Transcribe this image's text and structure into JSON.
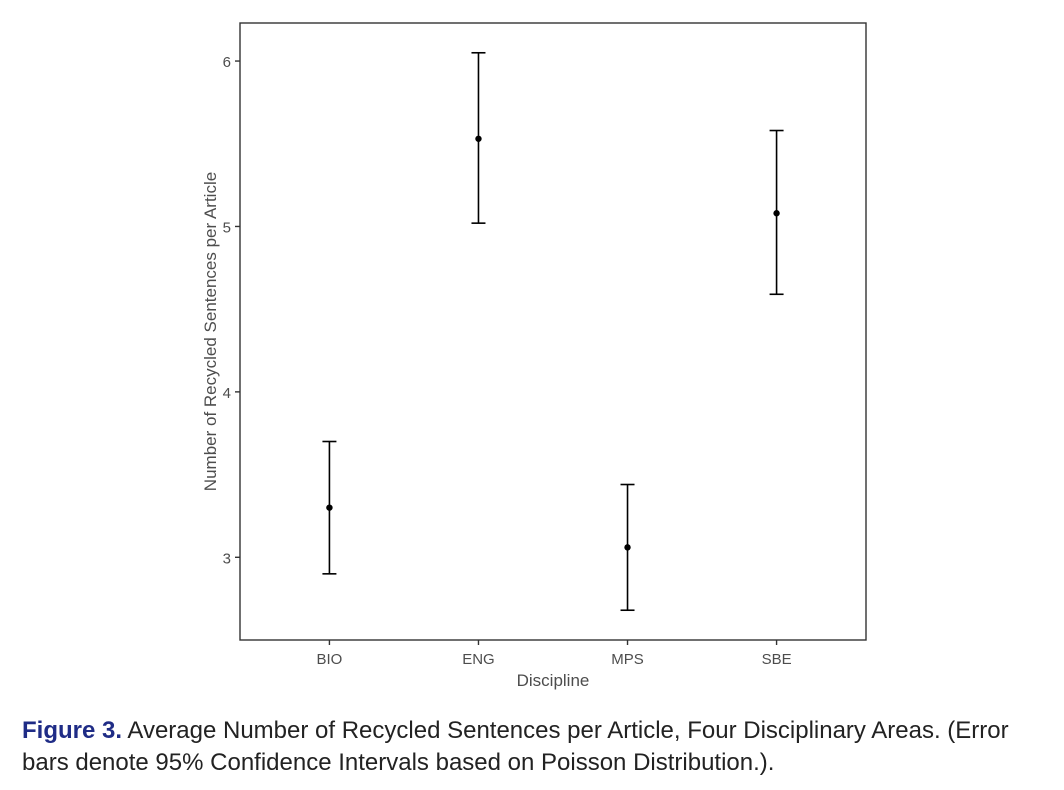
{
  "chart_data": {
    "type": "scatter",
    "subtype": "point-with-error-bars",
    "xlabel": "Discipline",
    "ylabel": "Number of Recycled Sentences per Article",
    "categories": [
      "BIO",
      "ENG",
      "MPS",
      "SBE"
    ],
    "points": [
      {
        "category": "BIO",
        "mean": 3.3,
        "lower": 2.9,
        "upper": 3.7
      },
      {
        "category": "ENG",
        "mean": 5.53,
        "lower": 5.02,
        "upper": 6.05
      },
      {
        "category": "MPS",
        "mean": 3.06,
        "lower": 2.68,
        "upper": 3.44
      },
      {
        "category": "SBE",
        "mean": 5.08,
        "lower": 4.59,
        "upper": 5.58
      }
    ],
    "yticks": [
      3,
      4,
      5,
      6
    ],
    "ylim": [
      2.5,
      6.23
    ],
    "grid": false,
    "colors": {
      "marks": "#000000",
      "frame": "#333333",
      "text": "#4d4d4d"
    }
  },
  "caption": {
    "label": "Figure 3.",
    "text": " Average Number of Recycled Sentences per Article, Four Disciplinary Areas. (Error bars denote 95% Confidence Intervals based on Poisson Distribution.)."
  }
}
